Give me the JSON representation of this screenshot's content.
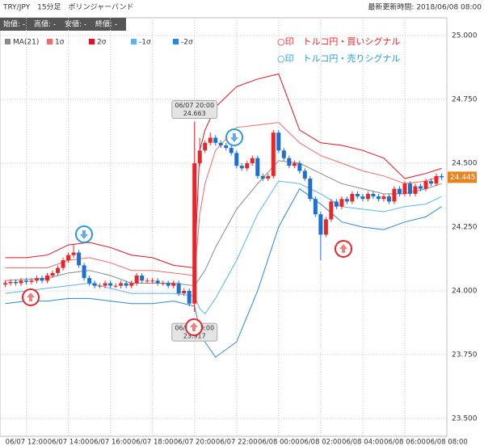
{
  "chart_data": {
    "type": "candlestick",
    "title": "TRY/JPY　15分足　ボリンジャーバンド",
    "updated": "最新更新時間: 2018/06/08 08:00",
    "ohlc_labels": [
      "始値: -",
      "高値: -",
      "安値: -",
      "終値: -"
    ],
    "annotations": [
      {
        "text": "○印　トルコ円・買いシグナル",
        "color": "#e8262a"
      },
      {
        "text": "○印　トルコ円・売りシグナル",
        "color": "#2a9ad8"
      }
    ],
    "up_color": "#e8262a",
    "down_color": "#1f6fd0",
    "last_price_color": "#e8841e",
    "xlim": [
      "06/07 10:45",
      "06/08 08:00"
    ],
    "xticks": [
      "06/07 12:00",
      "06/07 14:00",
      "06/07 16:00",
      "06/07 18:00",
      "06/07 20:00",
      "06/07 22:00",
      "06/08 00:00",
      "06/08 02:00",
      "06/08 04:00",
      "06/08 06:00",
      "06/08 08:00"
    ],
    "ylim": [
      23.43,
      25.07
    ],
    "yticks": [
      {
        "value": 23.5,
        "label": "23.500"
      },
      {
        "value": 23.75,
        "label": "23.750"
      },
      {
        "value": 24,
        "label": "24.000"
      },
      {
        "value": 24.25,
        "label": "24.250"
      },
      {
        "value": 24.5,
        "label": "24.500"
      },
      {
        "value": 24.75,
        "label": "24.750"
      },
      {
        "value": 25,
        "label": "25.000"
      }
    ],
    "grid": true,
    "x": [
      "06/07 11:00",
      "06/07 11:15",
      "06/07 11:30",
      "06/07 11:45",
      "06/07 12:00",
      "06/07 12:15",
      "06/07 12:30",
      "06/07 12:45",
      "06/07 13:00",
      "06/07 13:15",
      "06/07 13:30",
      "06/07 13:45",
      "06/07 14:00",
      "06/07 14:15",
      "06/07 14:30",
      "06/07 14:45",
      "06/07 15:00",
      "06/07 15:15",
      "06/07 15:30",
      "06/07 15:45",
      "06/07 16:00",
      "06/07 16:15",
      "06/07 16:30",
      "06/07 16:45",
      "06/07 17:00",
      "06/07 17:15",
      "06/07 17:30",
      "06/07 17:45",
      "06/07 18:00",
      "06/07 18:15",
      "06/07 18:30",
      "06/07 18:45",
      "06/07 19:00",
      "06/07 19:15",
      "06/07 19:30",
      "06/07 19:45",
      "06/07 20:00",
      "06/07 20:15",
      "06/07 20:30",
      "06/07 20:45",
      "06/07 21:00",
      "06/07 21:15",
      "06/07 21:30",
      "06/07 21:45",
      "06/07 22:00",
      "06/07 22:15",
      "06/07 22:30",
      "06/07 22:45",
      "06/07 23:00",
      "06/07 23:15",
      "06/07 23:30",
      "06/07 23:45",
      "06/08 00:00",
      "06/08 00:15",
      "06/08 00:30",
      "06/08 00:45",
      "06/08 01:00",
      "06/08 01:15",
      "06/08 01:30",
      "06/08 01:45",
      "06/08 02:00",
      "06/08 02:15",
      "06/08 02:30",
      "06/08 02:45",
      "06/08 03:00",
      "06/08 03:15",
      "06/08 03:30",
      "06/08 03:45",
      "06/08 04:00",
      "06/08 04:15",
      "06/08 04:30",
      "06/08 04:45",
      "06/08 05:00",
      "06/08 05:15",
      "06/08 05:30",
      "06/08 05:45",
      "06/08 06:00",
      "06/08 06:15",
      "06/08 06:30",
      "06/08 06:45",
      "06/08 07:00",
      "06/08 07:15",
      "06/08 07:30",
      "06/08 07:45"
    ],
    "open": [
      24.025,
      24.03,
      24.035,
      24.03,
      24.04,
      24.035,
      24.04,
      24.05,
      24.04,
      24.06,
      24.07,
      24.09,
      24.12,
      24.14,
      24.15,
      24.1,
      24.05,
      24.03,
      24.02,
      24.02,
      24.03,
      24.02,
      24.02,
      24.03,
      24.02,
      24.03,
      24.06,
      24.04,
      24.04,
      24.04,
      24.03,
      24.03,
      24.02,
      24.03,
      23.99,
      24.0,
      23.95,
      24.5,
      24.55,
      24.58,
      24.6,
      24.58,
      24.57,
      24.56,
      24.54,
      24.49,
      24.48,
      24.5,
      24.52,
      24.45,
      24.44,
      24.45,
      24.62,
      24.55,
      24.52,
      24.49,
      24.5,
      24.47,
      24.44,
      24.36,
      24.3,
      24.22,
      24.28,
      24.35,
      24.33,
      24.36,
      24.35,
      24.38,
      24.37,
      24.36,
      24.38,
      24.37,
      24.36,
      24.37,
      24.35,
      24.4,
      24.38,
      24.42,
      24.38,
      24.41,
      24.4,
      24.43,
      24.42,
      24.45
    ],
    "high": [
      24.04,
      24.045,
      24.045,
      24.05,
      24.05,
      24.05,
      24.06,
      24.06,
      24.07,
      24.08,
      24.1,
      24.13,
      24.15,
      24.18,
      24.16,
      24.11,
      24.06,
      24.04,
      24.03,
      24.04,
      24.04,
      24.03,
      24.04,
      24.04,
      24.04,
      24.07,
      24.07,
      24.05,
      24.05,
      24.05,
      24.04,
      24.04,
      24.04,
      24.04,
      24.01,
      24.01,
      24.663,
      24.6,
      24.59,
      24.62,
      24.61,
      24.59,
      24.58,
      24.57,
      24.55,
      24.5,
      24.51,
      24.53,
      24.53,
      24.46,
      24.46,
      24.63,
      24.63,
      24.56,
      24.53,
      24.51,
      24.51,
      24.48,
      24.45,
      24.37,
      24.31,
      24.29,
      24.36,
      24.36,
      24.37,
      24.37,
      24.39,
      24.39,
      24.38,
      24.39,
      24.39,
      24.38,
      24.38,
      24.38,
      24.41,
      24.41,
      24.43,
      24.43,
      24.42,
      24.42,
      24.44,
      24.44,
      24.46,
      24.46
    ],
    "low": [
      24.015,
      24.02,
      24.02,
      24.02,
      24.025,
      24.025,
      24.03,
      24.03,
      24.03,
      24.05,
      24.06,
      24.08,
      24.11,
      24.13,
      24.09,
      24.04,
      24.02,
      24.01,
      24.01,
      24.01,
      24.01,
      24.01,
      24.01,
      24.01,
      24.01,
      24.02,
      24.03,
      24.03,
      24.03,
      24.02,
      24.02,
      24.01,
      24.01,
      23.98,
      23.98,
      23.94,
      23.917,
      24.49,
      24.54,
      24.57,
      24.57,
      24.56,
      24.55,
      24.53,
      24.48,
      24.47,
      24.47,
      24.49,
      24.44,
      24.43,
      24.43,
      24.44,
      24.54,
      24.51,
      24.48,
      24.48,
      24.46,
      24.43,
      24.35,
      24.29,
      24.12,
      24.21,
      24.27,
      24.32,
      24.32,
      24.34,
      24.34,
      24.36,
      24.35,
      24.35,
      24.36,
      24.35,
      24.35,
      24.34,
      24.34,
      24.37,
      24.37,
      24.37,
      24.37,
      24.39,
      24.39,
      24.41,
      24.41,
      24.435
    ],
    "close": [
      24.03,
      24.035,
      24.03,
      24.04,
      24.035,
      24.04,
      24.05,
      24.04,
      24.06,
      24.07,
      24.09,
      24.12,
      24.14,
      24.15,
      24.1,
      24.05,
      24.03,
      24.02,
      24.02,
      24.03,
      24.02,
      24.02,
      24.03,
      24.02,
      24.03,
      24.06,
      24.04,
      24.04,
      24.04,
      24.03,
      24.03,
      24.02,
      24.03,
      23.99,
      24.0,
      23.95,
      24.5,
      24.55,
      24.58,
      24.6,
      24.58,
      24.57,
      24.56,
      24.54,
      24.49,
      24.48,
      24.5,
      24.52,
      24.45,
      24.44,
      24.45,
      24.62,
      24.55,
      24.52,
      24.49,
      24.5,
      24.47,
      24.44,
      24.36,
      24.3,
      24.22,
      24.28,
      24.35,
      24.33,
      24.36,
      24.35,
      24.38,
      24.37,
      24.36,
      24.38,
      24.37,
      24.36,
      24.37,
      24.35,
      24.4,
      24.38,
      24.42,
      24.38,
      24.41,
      24.4,
      24.43,
      24.42,
      24.45,
      24.445
    ],
    "bands": {
      "x": [
        "06/07 11:00",
        "06/07 12:00",
        "06/07 13:00",
        "06/07 14:00",
        "06/07 15:00",
        "06/07 16:00",
        "06/07 17:00",
        "06/07 18:00",
        "06/07 19:00",
        "06/07 20:00",
        "06/07 20:15",
        "06/07 20:30",
        "06/07 21:00",
        "06/07 22:00",
        "06/07 23:00",
        "06/08 00:00",
        "06/08 01:00",
        "06/08 02:00",
        "06/08 03:00",
        "06/08 04:00",
        "06/08 05:00",
        "06/08 06:00",
        "06/08 07:00",
        "06/08 07:45"
      ],
      "series": [
        {
          "name": "MA(21)",
          "color": "#8a8a8a",
          "values": [
            24.04,
            24.045,
            24.05,
            24.07,
            24.08,
            24.06,
            24.03,
            24.03,
            24.03,
            24.02,
            24.05,
            24.08,
            24.17,
            24.32,
            24.42,
            24.51,
            24.5,
            24.46,
            24.42,
            24.4,
            24.38,
            24.38,
            24.4,
            24.42
          ]
        },
        {
          "name": "1σ",
          "color": "#f06a6a",
          "values": [
            24.09,
            24.09,
            24.09,
            24.12,
            24.13,
            24.11,
            24.08,
            24.08,
            24.07,
            24.06,
            24.3,
            24.42,
            24.55,
            24.64,
            24.65,
            24.66,
            24.58,
            24.53,
            24.5,
            24.47,
            24.45,
            24.42,
            24.43,
            24.45
          ]
        },
        {
          "name": "2σ",
          "color": "#e0141c",
          "values": [
            24.13,
            24.13,
            24.14,
            24.18,
            24.19,
            24.17,
            24.14,
            24.13,
            24.1,
            24.09,
            24.55,
            24.63,
            24.72,
            24.8,
            24.83,
            24.85,
            24.63,
            24.58,
            24.57,
            24.55,
            24.52,
            24.44,
            24.46,
            24.48
          ]
        },
        {
          "name": "-1σ",
          "color": "#5ab4ee",
          "values": [
            23.99,
            24.0,
            24.01,
            24.02,
            24.03,
            24.01,
            23.99,
            23.99,
            23.99,
            23.98,
            23.93,
            23.91,
            23.97,
            24.12,
            24.3,
            24.43,
            24.42,
            24.38,
            24.33,
            24.32,
            24.31,
            24.33,
            24.34,
            24.37
          ]
        },
        {
          "name": "-2σ",
          "color": "#2a86dc",
          "values": [
            23.95,
            23.96,
            23.96,
            23.97,
            23.97,
            23.96,
            23.95,
            23.95,
            23.96,
            23.94,
            23.85,
            23.8,
            23.74,
            23.8,
            24.0,
            24.25,
            24.4,
            24.34,
            24.27,
            24.25,
            24.24,
            24.27,
            24.29,
            24.33
          ]
        }
      ]
    }
  }
}
